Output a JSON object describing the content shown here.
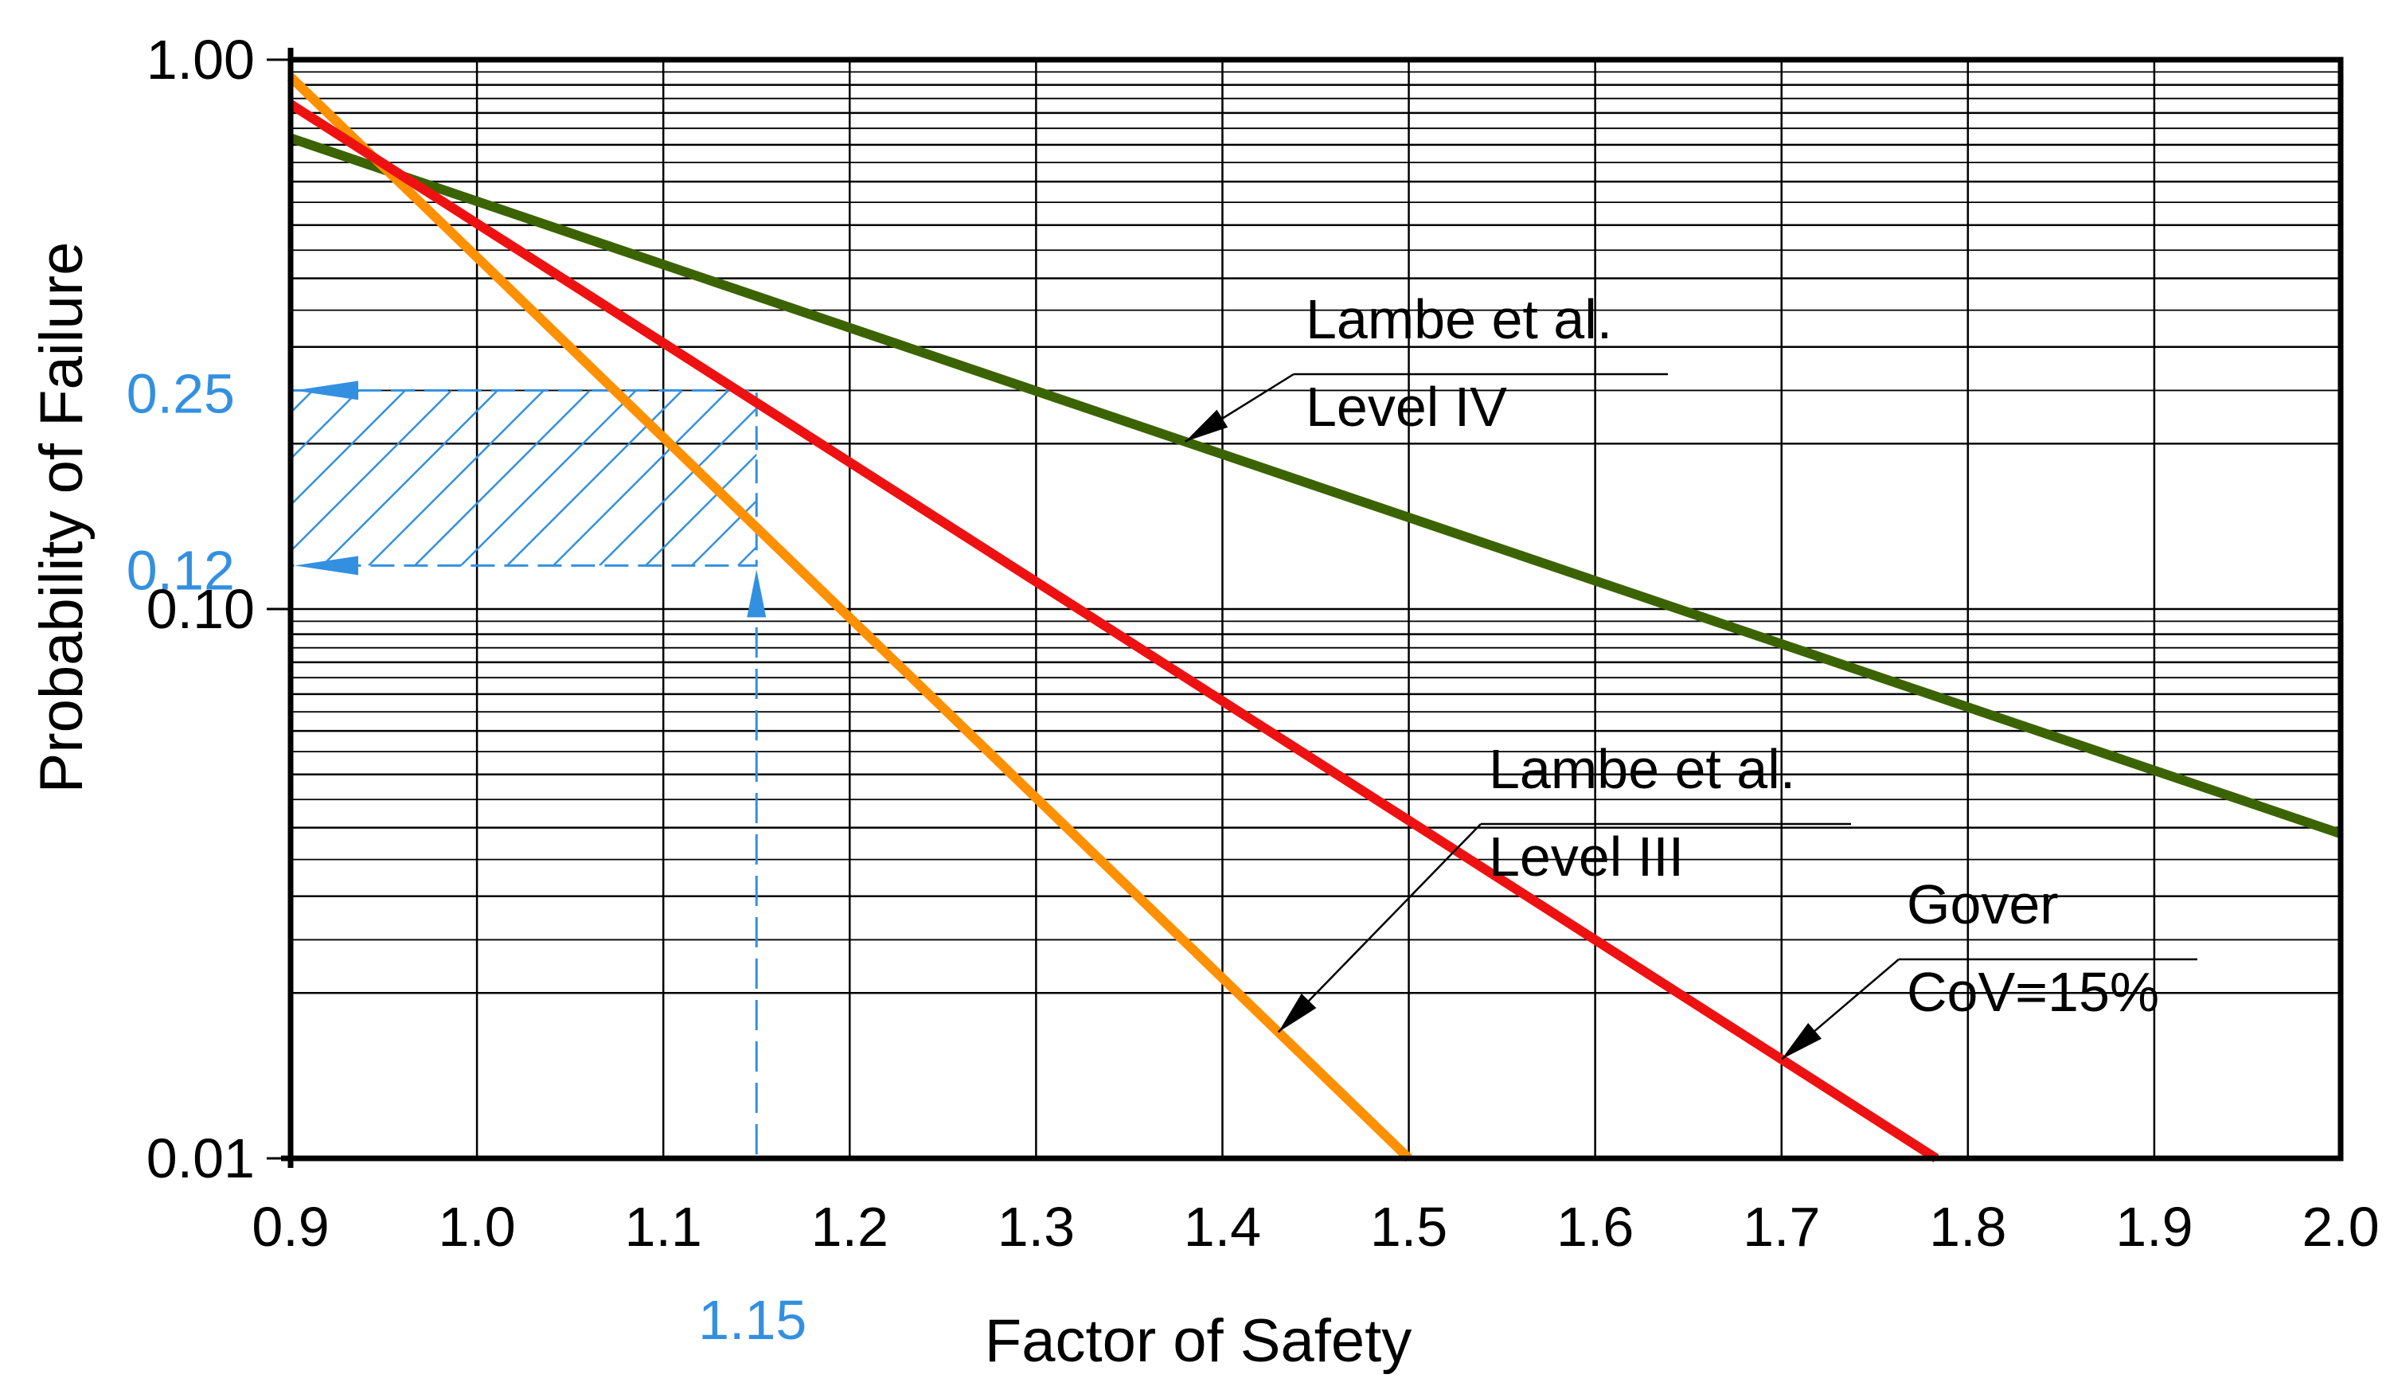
{
  "chart_data": {
    "type": "line",
    "title": "",
    "xlabel": "Factor of Safety",
    "ylabel": "Probability of Failure",
    "xlim": [
      0.9,
      2.0
    ],
    "ylim": [
      0.01,
      1.0
    ],
    "yscale": "log",
    "grid": true,
    "x_ticks": [
      "0.9",
      "1.0",
      "1.1",
      "1.2",
      "1.3",
      "1.4",
      "1.5",
      "1.6",
      "1.7",
      "1.8",
      "1.9",
      "2.0"
    ],
    "y_ticks": [
      "0.01",
      "0.10",
      "1.00"
    ],
    "series": [
      {
        "name": "Lambe et al. Level IV",
        "color": "#3b6300",
        "points": [
          [
            0.9,
            0.72
          ],
          [
            2.0,
            0.039
          ]
        ]
      },
      {
        "name": "Lambe et al. Level III",
        "color": "#ff9000",
        "points": [
          [
            0.9,
            0.93
          ],
          [
            1.5,
            0.01
          ]
        ]
      },
      {
        "name": "Gover CoV=15%",
        "color": "#ee1111",
        "points": [
          [
            0.9,
            0.83
          ],
          [
            1.783,
            0.01
          ]
        ]
      }
    ],
    "labels": [
      {
        "series": "Lambe et al. Level IV",
        "line1": "Lambe et al.",
        "line2": "Level IV",
        "x": 1.38
      },
      {
        "series": "Lambe et al. Level III",
        "line1": "Lambe et al.",
        "line2": "Level III",
        "x": 1.43
      },
      {
        "series": "Gover CoV=15%",
        "line1": "Gover",
        "line2": "CoV=15%",
        "x": 1.7
      }
    ],
    "highlight": {
      "color": "#3390e0",
      "x_value": 1.15,
      "x_label": "1.15",
      "y_lower": 0.12,
      "y_lower_label": "0.12",
      "y_upper": 0.25,
      "y_upper_label": "0.25"
    }
  }
}
